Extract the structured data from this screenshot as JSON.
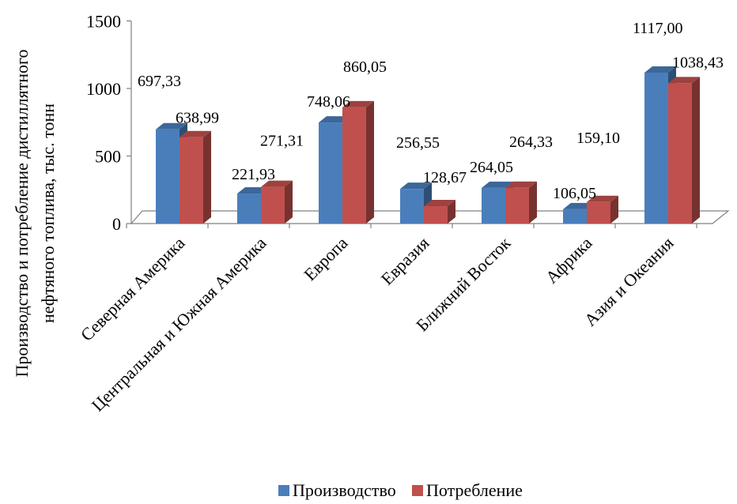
{
  "chart_data": {
    "type": "bar",
    "title": "",
    "ylabel_lines": [
      "Производство и потребление дистиллятного",
      "нефтяного топлива,  тыс. тонн"
    ],
    "ylim": [
      0,
      1500
    ],
    "yticks": [
      0,
      500,
      1000,
      1500
    ],
    "ytick_labels": [
      "0",
      "500",
      "1000",
      "1500"
    ],
    "categories": [
      "Северная Америка",
      "Центральная и Южная Америка",
      "Европа",
      "Евразия",
      "Ближний Восток",
      "Африка",
      "Азия и Океания"
    ],
    "series": [
      {
        "name": "Производство",
        "color": "#4a7ebb",
        "values": [
          697.33,
          221.93,
          748.06,
          256.55,
          264.05,
          106.05,
          1117.0
        ],
        "labels": [
          "697,33",
          "221,93",
          "748,06",
          "256,55",
          "264,05",
          "106,05",
          "1117,00"
        ]
      },
      {
        "name": "Потребление",
        "color": "#c0504d",
        "values": [
          638.99,
          271.31,
          860.05,
          128.67,
          264.33,
          159.1,
          1038.43
        ],
        "labels": [
          "638,99",
          "271,31",
          "860,05",
          "128,67",
          "264,33",
          "159,10",
          "1038,43"
        ]
      }
    ],
    "grid": false,
    "legend": "bottom"
  }
}
